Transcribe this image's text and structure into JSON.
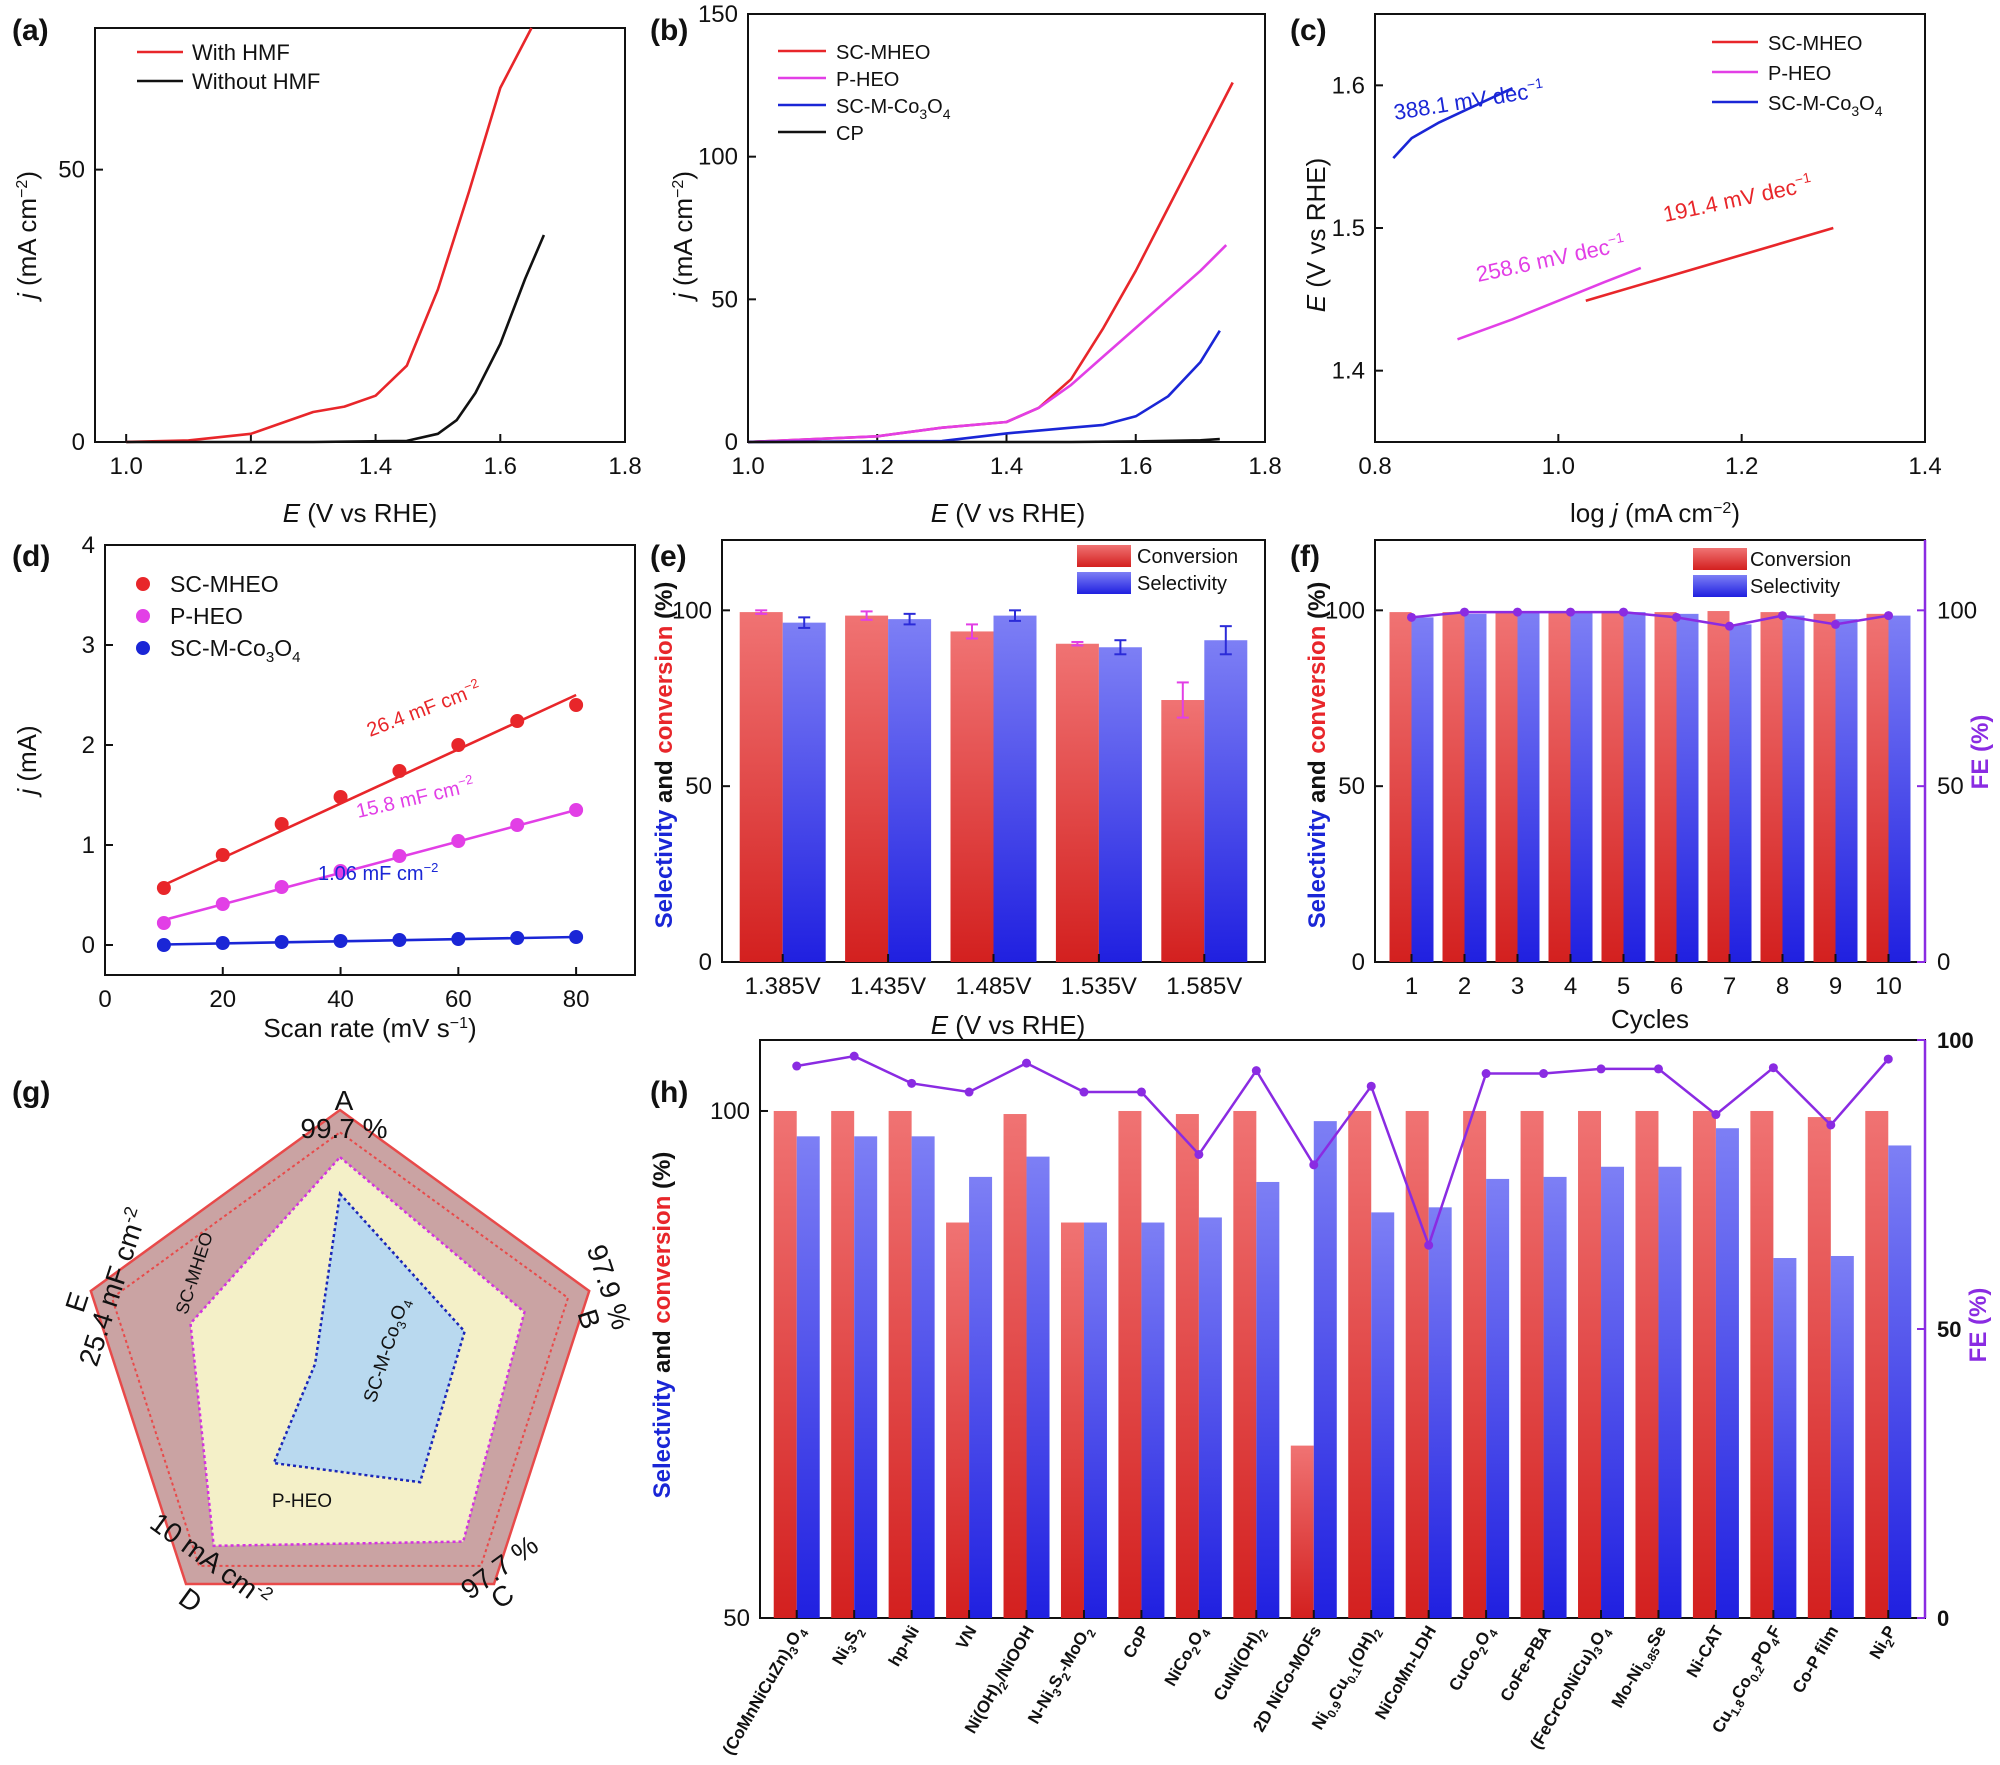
{
  "colors": {
    "red": "#e8262a",
    "magenta": "#e23fe6",
    "blue": "#1a26d6",
    "black": "#111111",
    "conv": "#e64e50",
    "sel": "#6a6cf2",
    "fe": "#8a2be2",
    "radar_outer": "#caa3a3",
    "radar_mid": "#f4f0c8",
    "radar_inner": "#b9d9ef"
  },
  "chart_data": [
    {
      "id": "a",
      "type": "line",
      "panel": "(a)",
      "xlabel_italic": "E",
      "xlabel_rest": " (V vs RHE)",
      "ylabel_italic": "j",
      "ylabel_rest": " (mA cm",
      "xlim": [
        0.95,
        1.8
      ],
      "ylim": [
        0,
        76
      ],
      "xticks": [
        "1.0",
        "1.2",
        "1.4",
        "1.6",
        "1.8"
      ],
      "yticks": [
        "0",
        "50"
      ],
      "series": [
        {
          "name": "With HMF",
          "color": "red",
          "x": [
            1.0,
            1.1,
            1.2,
            1.25,
            1.3,
            1.35,
            1.4,
            1.45,
            1.5,
            1.55,
            1.6,
            1.65
          ],
          "y": [
            0,
            0.3,
            1.5,
            3.5,
            5.5,
            6.5,
            8.5,
            14,
            28,
            46,
            65,
            76
          ]
        },
        {
          "name": "Without HMF",
          "color": "black",
          "x": [
            1.0,
            1.3,
            1.45,
            1.5,
            1.53,
            1.56,
            1.6,
            1.64,
            1.67
          ],
          "y": [
            0,
            0,
            0.2,
            1.5,
            4,
            9,
            18,
            30,
            38
          ]
        }
      ]
    },
    {
      "id": "b",
      "type": "line",
      "panel": "(b)",
      "xlabel_italic": "E",
      "xlabel_rest": " (V vs RHE)",
      "ylabel_italic": "j",
      "ylabel_rest": " (mA cm",
      "xlim": [
        1.0,
        1.8
      ],
      "ylim": [
        0,
        150
      ],
      "xticks": [
        "1.0",
        "1.2",
        "1.4",
        "1.6",
        "1.8"
      ],
      "yticks": [
        "0",
        "50",
        "100",
        "150"
      ],
      "series": [
        {
          "name": "SC-MHEO",
          "color": "red",
          "x": [
            1.0,
            1.2,
            1.3,
            1.4,
            1.45,
            1.5,
            1.55,
            1.6,
            1.65,
            1.7,
            1.75
          ],
          "y": [
            0,
            2,
            5,
            7,
            12,
            22,
            40,
            60,
            82,
            104,
            126
          ]
        },
        {
          "name": "P-HEO",
          "color": "magenta",
          "x": [
            1.0,
            1.2,
            1.3,
            1.4,
            1.45,
            1.5,
            1.55,
            1.6,
            1.65,
            1.7,
            1.74
          ],
          "y": [
            0,
            2,
            5,
            7,
            12,
            20,
            30,
            40,
            50,
            60,
            69
          ]
        },
        {
          "name": "SC-M-Co3O4",
          "color": "blue",
          "x": [
            1.0,
            1.3,
            1.4,
            1.45,
            1.5,
            1.55,
            1.6,
            1.65,
            1.7,
            1.73
          ],
          "y": [
            0,
            0.3,
            3,
            4,
            5,
            6,
            9,
            16,
            28,
            39
          ]
        },
        {
          "name": "CP",
          "color": "black",
          "x": [
            1.0,
            1.5,
            1.6,
            1.7,
            1.73
          ],
          "y": [
            0,
            0,
            0.2,
            0.6,
            1
          ]
        }
      ]
    },
    {
      "id": "c",
      "type": "line",
      "panel": "(c)",
      "xlabel_pre": "log ",
      "xlabel_italic": "j",
      "xlabel_rest": " (mA cm",
      "ylabel_italic": "E",
      "ylabel_rest": " (V vs RHE)",
      "xlim": [
        0.8,
        1.4
      ],
      "ylim": [
        1.35,
        1.65
      ],
      "xticks": [
        "0.8",
        "1.0",
        "1.2",
        "1.4"
      ],
      "yticks": [
        "1.4",
        "1.5",
        "1.6"
      ],
      "series": [
        {
          "name": "SC-MHEO",
          "color": "red",
          "x": [
            1.03,
            1.3
          ],
          "y": [
            1.449,
            1.5
          ],
          "label": "191.4 mV dec"
        },
        {
          "name": "P-HEO",
          "color": "magenta",
          "x": [
            0.89,
            0.95,
            1.0,
            1.05,
            1.09
          ],
          "y": [
            1.422,
            1.436,
            1.449,
            1.462,
            1.472
          ],
          "label": "258.6 mV dec"
        },
        {
          "name": "SC-M-Co3O4",
          "color": "blue",
          "x": [
            0.82,
            0.84,
            0.87,
            0.9,
            0.95
          ],
          "y": [
            1.549,
            1.563,
            1.574,
            1.583,
            1.598
          ],
          "label": "388.1 mV dec"
        }
      ]
    },
    {
      "id": "d",
      "type": "scatter",
      "panel": "(d)",
      "xlabel": "Scan rate (mV s",
      "ylabel_italic": "j",
      "ylabel_rest": " (mA)",
      "xlim": [
        0,
        90
      ],
      "ylim": [
        -0.3,
        4
      ],
      "xticks": [
        "0",
        "20",
        "40",
        "60",
        "80"
      ],
      "yticks": [
        "0",
        "1",
        "2",
        "3",
        "4"
      ],
      "x": [
        10,
        20,
        30,
        40,
        50,
        60,
        70,
        80
      ],
      "series": [
        {
          "name": "SC-MHEO",
          "color": "red",
          "values": [
            0.57,
            0.9,
            1.21,
            1.48,
            1.74,
            2.0,
            2.24,
            2.4
          ],
          "fit": [
            0.6,
            2.5
          ],
          "label": "26.4 mF cm"
        },
        {
          "name": "P-HEO",
          "color": "magenta",
          "values": [
            0.22,
            0.41,
            0.58,
            0.74,
            0.89,
            1.04,
            1.2,
            1.35
          ],
          "fit": [
            0.25,
            1.35
          ],
          "label": "15.8 mF cm"
        },
        {
          "name": "SC-M-Co3O4",
          "color": "blue",
          "values": [
            0.0,
            0.02,
            0.03,
            0.04,
            0.05,
            0.06,
            0.07,
            0.08
          ],
          "fit": [
            0.005,
            0.08
          ],
          "label": "1.06 mF cm"
        }
      ]
    },
    {
      "id": "e",
      "type": "bar",
      "panel": "(e)",
      "xlabel_italic": "E",
      "xlabel_rest": " (V vs RHE)",
      "ylabel_parts": [
        "Selectivity",
        " and ",
        "conversion",
        " (%)"
      ],
      "ylim": [
        0,
        120
      ],
      "yticks": [
        "0",
        "50",
        "100"
      ],
      "categories": [
        "1.385V",
        "1.435V",
        "1.485V",
        "1.535V",
        "1.585V"
      ],
      "series": [
        {
          "name": "Conversion",
          "color": "conv",
          "values": [
            99.5,
            98.5,
            94,
            90.5,
            74.5
          ],
          "err": [
            0.5,
            1.2,
            2,
            0.5,
            5
          ]
        },
        {
          "name": "Selectivity",
          "color": "sel",
          "values": [
            96.5,
            97.5,
            98.5,
            89.5,
            91.5
          ],
          "err": [
            1.5,
            1.5,
            1.5,
            2,
            4
          ]
        }
      ]
    },
    {
      "id": "f",
      "type": "bar",
      "panel": "(f)",
      "xlabel": "Cycles",
      "ylabel_parts": [
        "Selectivity",
        " and ",
        "conversion",
        " (%)"
      ],
      "y2label": "FE (%)",
      "ylim": [
        0,
        120
      ],
      "yticks": [
        "0",
        "50",
        "100"
      ],
      "y2ticks": [
        "0",
        "50",
        "100"
      ],
      "categories": [
        "1",
        "2",
        "3",
        "4",
        "5",
        "6",
        "7",
        "8",
        "9",
        "10"
      ],
      "series": [
        {
          "name": "Conversion",
          "color": "conv",
          "values": [
            99.5,
            99.5,
            99.5,
            99.5,
            99.5,
            99.5,
            99.8,
            99.5,
            99,
            99
          ]
        },
        {
          "name": "Selectivity",
          "color": "sel",
          "values": [
            98,
            99,
            99.5,
            99.5,
            99.5,
            99,
            96,
            98.5,
            97.5,
            98.5
          ]
        }
      ],
      "fe": [
        98,
        99.5,
        99.5,
        99.5,
        99.5,
        98,
        95.5,
        98.5,
        96,
        98.5
      ]
    },
    {
      "id": "g",
      "type": "radar",
      "panel": "(g)",
      "axes": [
        {
          "letter": "A",
          "value": "99.7 %"
        },
        {
          "letter": "B",
          "value": "97.9 %"
        },
        {
          "letter": "C",
          "value": "97.7 %"
        },
        {
          "letter": "D",
          "value": "10 mA cm"
        },
        {
          "letter": "E",
          "value": "25.4 mF cm"
        }
      ],
      "series": [
        {
          "name": "SC-MHEO",
          "values": [
            1,
            1,
            1,
            1,
            1
          ]
        },
        {
          "name": "P-HEO",
          "values": [
            0.82,
            0.74,
            0.8,
            0.82,
            0.6
          ]
        },
        {
          "name": "SC-M-Co3O4",
          "values": [
            0.68,
            0.5,
            0.52,
            0.43,
            0.1
          ]
        }
      ]
    },
    {
      "id": "h",
      "type": "bar",
      "panel": "(h)",
      "ylabel_parts": [
        "Selectivity",
        " and ",
        "conversion",
        " (%)"
      ],
      "y2label": "FE (%)",
      "ylim": [
        50,
        107
      ],
      "yticks": [
        "50",
        "100"
      ],
      "y2ticks": [
        "0",
        "50",
        "100"
      ],
      "categories": [
        "(CoMnNiCuZn)3O4",
        "Ni3S2",
        "hp-Ni",
        "VN",
        "Ni(OH)2/NiOOH",
        "N-Ni3S2-MoO2",
        "CoP",
        "NiCo2O4",
        "CuNi(OH)2",
        "2D NiCo-MOFs",
        "Ni0.9Cu0.1(OH)2",
        "NiCoMn-LDH",
        "CuCo2O4",
        "CoFe-PBA",
        "(FeCrCoNiCu)3O4",
        "Mo-Ni0.85Se",
        "Ni-CAT",
        "Cu1.8Co0.2PO4F",
        "Co-P film",
        "Ni2P"
      ],
      "series": [
        {
          "name": "Conversion",
          "color": "conv",
          "values": [
            100,
            100,
            100,
            89,
            99.7,
            89,
            100,
            99.7,
            100,
            67,
            100,
            100,
            100,
            100,
            100,
            100,
            100,
            100,
            99.4,
            100
          ]
        },
        {
          "name": "Selectivity",
          "color": "sel",
          "values": [
            97.5,
            97.5,
            97.5,
            93.5,
            95.5,
            89,
            89,
            89.5,
            93,
            99,
            90,
            90.5,
            93.3,
            93.5,
            94.5,
            94.5,
            98.3,
            85.5,
            85.7,
            96.6
          ]
        }
      ],
      "fe": [
        95.5,
        97.2,
        92.5,
        91,
        96,
        91,
        91,
        80.2,
        94.7,
        78.4,
        92,
        64.5,
        94.2,
        94.2,
        95,
        95,
        87.1,
        95.2,
        85.3,
        96.7
      ]
    }
  ]
}
